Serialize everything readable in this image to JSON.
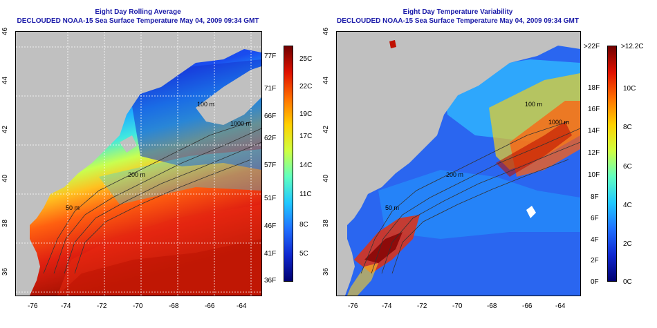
{
  "left_panel": {
    "title": "Eight Day Rolling Average",
    "subtitle": "DECLOUDED NOAA-15 Sea Surface Temperature May 04, 2009 09:34 GMT",
    "lat_ticks": [
      "46",
      "44",
      "42",
      "40",
      "38",
      "36"
    ],
    "lon_ticks": [
      "-76",
      "-74",
      "-72",
      "-70",
      "-68",
      "-66",
      "-64"
    ],
    "contour_labels": [
      "100 m",
      "1000 m",
      "200 m",
      "50 m"
    ],
    "colorbar": {
      "f_labels": [
        "77F",
        "71F",
        "66F",
        "62F",
        "57F",
        "51F",
        "46F",
        "41F",
        "36F"
      ],
      "c_labels": [
        "25C",
        "22C",
        "19C",
        "17C",
        "14C",
        "11C",
        "8C",
        "5C"
      ],
      "colors": [
        "#000070",
        "#1028d0",
        "#2070ff",
        "#20c8ff",
        "#60ffc0",
        "#d0ff40",
        "#ffd000",
        "#ff7000",
        "#e01000",
        "#700000"
      ]
    }
  },
  "right_panel": {
    "title": "Eight Day Temperature Variability",
    "subtitle": "DECLOUDED NOAA-15 Sea Surface Temperature May 04, 2009 09:34 GMT",
    "lat_ticks": [
      "46",
      "44",
      "42",
      "40",
      "38",
      "36"
    ],
    "lon_ticks": [
      "-76",
      "-74",
      "-72",
      "-70",
      "-68",
      "-66",
      "-64"
    ],
    "contour_labels": [
      "100 m",
      "1000 m",
      "200 m",
      "50 m"
    ],
    "colorbar": {
      "f_labels": [
        ">22F",
        "18F",
        "16F",
        "14F",
        "12F",
        "10F",
        "8F",
        "6F",
        "4F",
        "2F",
        "0F"
      ],
      "c_labels": [
        ">12.2C",
        "10C",
        "8C",
        "6C",
        "4C",
        "2C",
        "0C"
      ],
      "colors": [
        "#000070",
        "#1028d0",
        "#2070ff",
        "#20c8ff",
        "#60ffc0",
        "#d0ff40",
        "#ffd000",
        "#ff7000",
        "#e01000",
        "#700000"
      ]
    }
  },
  "colors": {
    "land": "#c0c0c0",
    "title": "#1a1aa8"
  }
}
